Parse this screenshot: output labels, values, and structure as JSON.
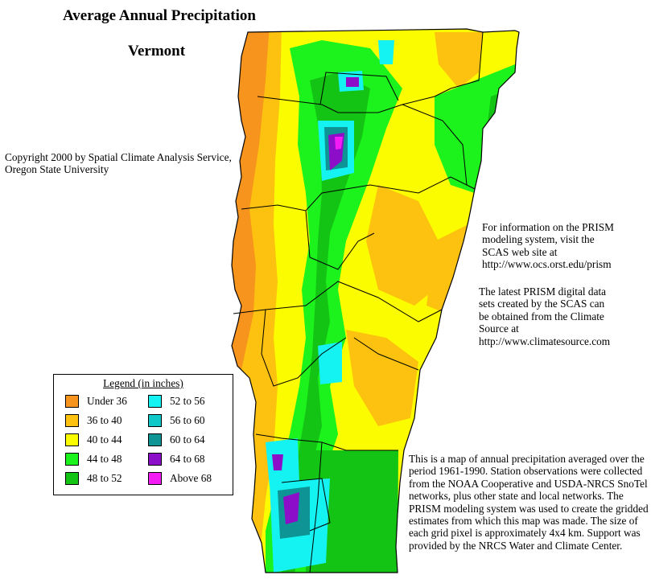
{
  "title": "Average Annual Precipitation",
  "subtitle": "Vermont",
  "copyright": "Copyright 2000 by Spatial Climate Analysis Service,\nOregon State University",
  "prism_info": "For information on the PRISM\nmodeling system, visit the\nSCAS web site at\n http://www.ocs.orst.edu/prism",
  "data_info": "The latest PRISM digital data\nsets created by the SCAS can\nbe obtained from the Climate\nSource at\nhttp://www.climatesource.com",
  "map_description": "This is a map of annual precipitation averaged over the period 1961-1990. Station observations were collected from the NOAA Cooperative and USDA-NRCS SnoTel networks, plus other state and local networks.  The PRISM modeling system was used to create the gridded estimates from which this map was made.  The size of each grid pixel is approximately 4x4 km.  Support was provided by the NRCS Water and Climate Center.",
  "legend": {
    "title": "Legend (in inches)",
    "items": [
      {
        "label": "Under 36",
        "color": "#f7941d"
      },
      {
        "label": "36 to 40",
        "color": "#fcc20f"
      },
      {
        "label": "40 to 44",
        "color": "#fcfc00"
      },
      {
        "label": "44 to 48",
        "color": "#1cf21c"
      },
      {
        "label": "48 to 52",
        "color": "#14c414"
      },
      {
        "label": "52 to 56",
        "color": "#14f2f2"
      },
      {
        "label": "56 to 60",
        "color": "#10c8c8"
      },
      {
        "label": "60 to 64",
        "color": "#0e9494"
      },
      {
        "label": "64 to 68",
        "color": "#8c0ec8"
      },
      {
        "label": "Above 68",
        "color": "#f41cf4"
      }
    ]
  }
}
